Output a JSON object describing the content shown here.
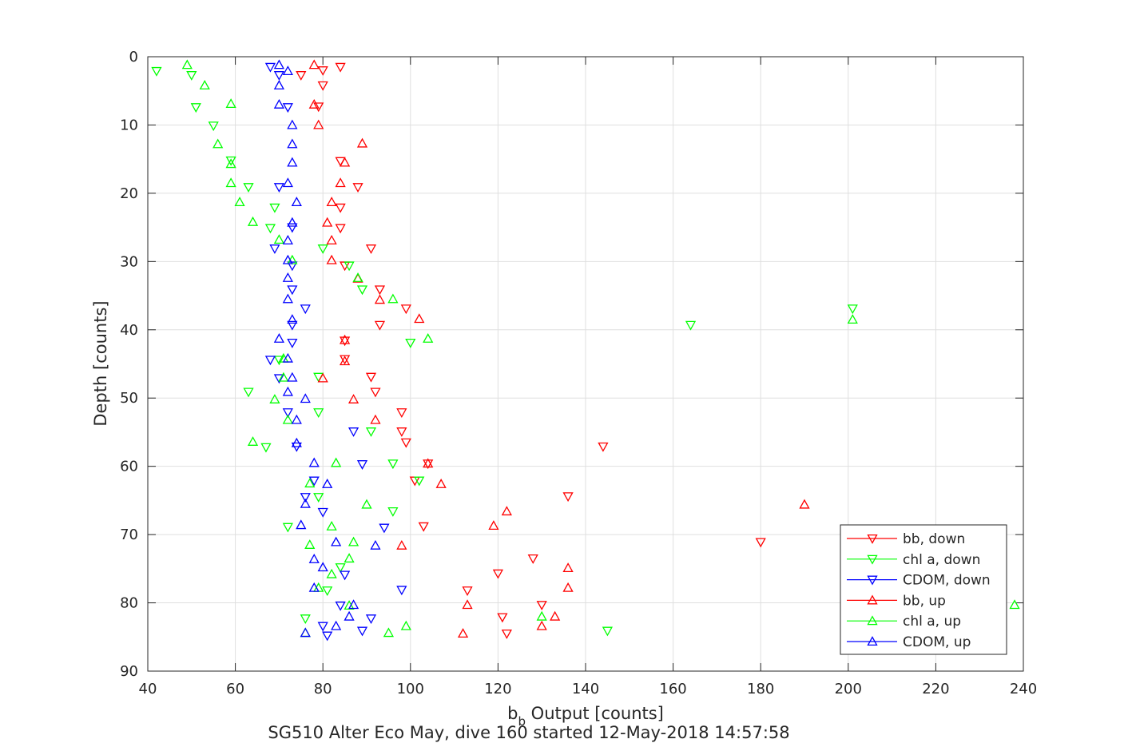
{
  "chart_data": {
    "type": "scatter",
    "title": "SG510 Alter Eco May, dive 160 started 12-May-2018 14:57:58",
    "xlabel_main": "b",
    "xlabel_sub": "b",
    "xlabel_rest": " Output [counts]",
    "ylabel": "Depth [counts]",
    "xlim": [
      40,
      240
    ],
    "ylim": [
      0,
      90
    ],
    "y_reversed": true,
    "grid": true,
    "legend_position": "bottom-right",
    "xticks": [
      "40",
      "60",
      "80",
      "100",
      "120",
      "140",
      "160",
      "180",
      "200",
      "220",
      "240"
    ],
    "yticks": [
      "0",
      "10",
      "20",
      "30",
      "40",
      "50",
      "60",
      "70",
      "80",
      "90"
    ],
    "series": [
      {
        "name": "bb, down",
        "color": "#ff0000",
        "marker": "triangle-down",
        "points": [
          [
            84,
            1.5
          ],
          [
            80,
            2.0
          ],
          [
            75,
            2.7
          ],
          [
            80,
            4.2
          ],
          [
            79,
            7.3
          ],
          [
            84,
            15.3
          ],
          [
            88,
            19.1
          ],
          [
            84,
            22.1
          ],
          [
            84,
            25.1
          ],
          [
            91,
            28.1
          ],
          [
            85,
            30.6
          ],
          [
            93,
            34.1
          ],
          [
            99,
            36.9
          ],
          [
            93,
            39.3
          ],
          [
            85,
            41.6
          ],
          [
            85,
            44.3
          ],
          [
            91,
            46.9
          ],
          [
            92,
            49.1
          ],
          [
            98,
            52.1
          ],
          [
            98,
            54.9
          ],
          [
            99,
            56.5
          ],
          [
            104,
            59.6
          ],
          [
            144,
            57.1
          ],
          [
            101,
            62.1
          ],
          [
            136,
            64.4
          ],
          [
            103,
            68.8
          ],
          [
            180,
            71.1
          ],
          [
            128,
            73.5
          ],
          [
            120,
            75.7
          ],
          [
            113,
            78.2
          ],
          [
            130,
            80.3
          ],
          [
            121,
            82.1
          ],
          [
            122,
            84.5
          ]
        ]
      },
      {
        "name": "chl a, down",
        "color": "#00ff00",
        "marker": "triangle-down",
        "points": [
          [
            42,
            2.1
          ],
          [
            50,
            2.7
          ],
          [
            51,
            7.4
          ],
          [
            55,
            10.1
          ],
          [
            59,
            15.2
          ],
          [
            63,
            19.1
          ],
          [
            69,
            22.1
          ],
          [
            68,
            25.1
          ],
          [
            80,
            28.1
          ],
          [
            86,
            30.6
          ],
          [
            89,
            34.1
          ],
          [
            201,
            36.9
          ],
          [
            164,
            39.3
          ],
          [
            100,
            41.9
          ],
          [
            70,
            44.4
          ],
          [
            79,
            46.9
          ],
          [
            63,
            49.1
          ],
          [
            79,
            52.1
          ],
          [
            91,
            54.9
          ],
          [
            67,
            57.2
          ],
          [
            96,
            59.6
          ],
          [
            102,
            62.1
          ],
          [
            79,
            64.5
          ],
          [
            96,
            66.6
          ],
          [
            72,
            68.9
          ],
          [
            84,
            74.8
          ],
          [
            81,
            78.2
          ],
          [
            76,
            82.3
          ],
          [
            145,
            84.1
          ]
        ]
      },
      {
        "name": "CDOM, down",
        "color": "#0000ff",
        "marker": "triangle-down",
        "points": [
          [
            68,
            1.5
          ],
          [
            70,
            2.7
          ],
          [
            72,
            7.4
          ],
          [
            70,
            19.1
          ],
          [
            73,
            25.0
          ],
          [
            69,
            28.1
          ],
          [
            73,
            30.6
          ],
          [
            73,
            34.1
          ],
          [
            76,
            36.9
          ],
          [
            73,
            39.3
          ],
          [
            73,
            41.9
          ],
          [
            68,
            44.4
          ],
          [
            70,
            47.1
          ],
          [
            72,
            52.1
          ],
          [
            87,
            54.9
          ],
          [
            74,
            57.1
          ],
          [
            89,
            59.7
          ],
          [
            78,
            62.1
          ],
          [
            76,
            64.5
          ],
          [
            80,
            66.7
          ],
          [
            94,
            69.0
          ],
          [
            85,
            75.9
          ],
          [
            98,
            78.1
          ],
          [
            84,
            80.4
          ],
          [
            91,
            82.3
          ],
          [
            80,
            83.4
          ],
          [
            89,
            84.1
          ],
          [
            81,
            84.8
          ]
        ]
      },
      {
        "name": "bb, up",
        "color": "#ff0000",
        "marker": "triangle-up",
        "points": [
          [
            78,
            1.2
          ],
          [
            78,
            7.0
          ],
          [
            79,
            10.0
          ],
          [
            89,
            12.7
          ],
          [
            85,
            15.5
          ],
          [
            84,
            18.5
          ],
          [
            82,
            21.3
          ],
          [
            81,
            24.3
          ],
          [
            82,
            26.9
          ],
          [
            82,
            29.8
          ],
          [
            88,
            32.5
          ],
          [
            93,
            35.6
          ],
          [
            102,
            38.4
          ],
          [
            85,
            41.5
          ],
          [
            85,
            44.6
          ],
          [
            80,
            47.1
          ],
          [
            87,
            50.2
          ],
          [
            92,
            53.2
          ],
          [
            104,
            59.6
          ],
          [
            107,
            62.6
          ],
          [
            122,
            66.6
          ],
          [
            190,
            65.6
          ],
          [
            119,
            68.7
          ],
          [
            98,
            71.6
          ],
          [
            136,
            74.9
          ],
          [
            136,
            77.8
          ],
          [
            113,
            80.3
          ],
          [
            133,
            82.0
          ],
          [
            130,
            83.4
          ],
          [
            112,
            84.5
          ]
        ]
      },
      {
        "name": "chl a, up",
        "color": "#00ff00",
        "marker": "triangle-up",
        "points": [
          [
            49,
            1.2
          ],
          [
            53,
            4.2
          ],
          [
            59,
            6.9
          ],
          [
            56,
            12.8
          ],
          [
            59,
            15.7
          ],
          [
            59,
            18.5
          ],
          [
            61,
            21.3
          ],
          [
            64,
            24.2
          ],
          [
            70,
            26.8
          ],
          [
            73,
            29.8
          ],
          [
            88,
            32.4
          ],
          [
            96,
            35.5
          ],
          [
            201,
            38.5
          ],
          [
            104,
            41.3
          ],
          [
            71,
            44.2
          ],
          [
            71,
            47.0
          ],
          [
            69,
            50.2
          ],
          [
            72,
            53.2
          ],
          [
            64,
            56.4
          ],
          [
            83,
            59.5
          ],
          [
            77,
            62.5
          ],
          [
            90,
            65.6
          ],
          [
            82,
            68.8
          ],
          [
            77,
            71.5
          ],
          [
            87,
            71.1
          ],
          [
            86,
            73.5
          ],
          [
            79,
            77.8
          ],
          [
            86,
            80.4
          ],
          [
            130,
            82.0
          ],
          [
            99,
            83.4
          ],
          [
            95,
            84.4
          ],
          [
            238,
            80.3
          ],
          [
            76,
            84.4
          ],
          [
            82,
            75.8
          ]
        ]
      },
      {
        "name": "CDOM, up",
        "color": "#0000ff",
        "marker": "triangle-up",
        "points": [
          [
            70,
            1.2
          ],
          [
            72,
            2.1
          ],
          [
            70,
            4.2
          ],
          [
            70,
            7.0
          ],
          [
            73,
            10.0
          ],
          [
            73,
            12.8
          ],
          [
            73,
            15.5
          ],
          [
            72,
            18.5
          ],
          [
            74,
            21.3
          ],
          [
            73,
            24.3
          ],
          [
            72,
            26.9
          ],
          [
            72,
            29.8
          ],
          [
            72,
            32.4
          ],
          [
            72,
            35.5
          ],
          [
            73,
            38.5
          ],
          [
            70,
            41.3
          ],
          [
            72,
            44.2
          ],
          [
            73,
            47.0
          ],
          [
            72,
            49.1
          ],
          [
            76,
            50.1
          ],
          [
            74,
            53.2
          ],
          [
            74,
            56.6
          ],
          [
            78,
            59.5
          ],
          [
            81,
            62.6
          ],
          [
            76,
            65.5
          ],
          [
            75,
            68.6
          ],
          [
            83,
            71.1
          ],
          [
            92,
            71.6
          ],
          [
            78,
            73.6
          ],
          [
            80,
            74.8
          ],
          [
            78,
            77.8
          ],
          [
            87,
            80.3
          ],
          [
            86,
            82.0
          ],
          [
            83,
            83.4
          ],
          [
            76,
            84.4
          ]
        ]
      }
    ]
  }
}
